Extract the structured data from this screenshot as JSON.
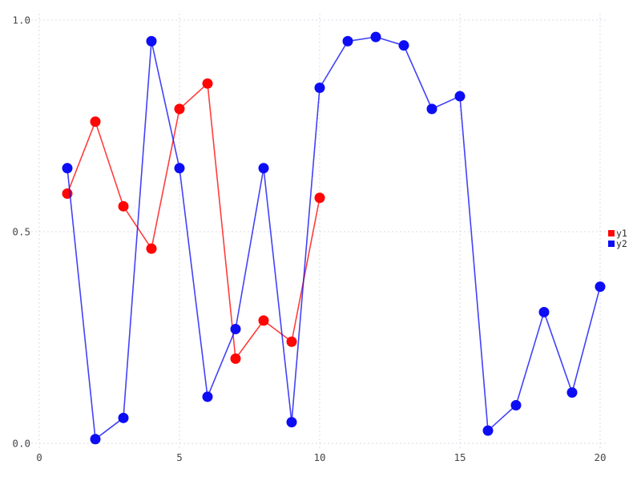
{
  "chart_data": {
    "type": "line",
    "title": "",
    "xlabel": "",
    "ylabel": "",
    "xlim": [
      0,
      20
    ],
    "ylim": [
      0.0,
      1.0
    ],
    "grid": true,
    "grid_style": "dotted",
    "legend_position": "right-center",
    "xticks": [
      0,
      5,
      10,
      15,
      20
    ],
    "xtick_labels": [
      "0",
      "5",
      "10",
      "15",
      "20"
    ],
    "yticks": [
      0.0,
      0.5,
      1.0
    ],
    "ytick_labels": [
      "0.0",
      "0.5",
      "1.0"
    ],
    "series": [
      {
        "name": "y1",
        "color": "#ff0505",
        "x": [
          1,
          2,
          3,
          4,
          5,
          6,
          7,
          8,
          9,
          10
        ],
        "values": [
          0.59,
          0.76,
          0.56,
          0.46,
          0.79,
          0.85,
          0.2,
          0.29,
          0.24,
          0.58
        ]
      },
      {
        "name": "y2",
        "color": "#0d0df5",
        "x": [
          1,
          2,
          3,
          4,
          5,
          6,
          7,
          8,
          9,
          10,
          11,
          12,
          13,
          14,
          15,
          16,
          17,
          18,
          19,
          20
        ],
        "values": [
          0.65,
          0.01,
          0.06,
          0.95,
          0.65,
          0.11,
          0.27,
          0.65,
          0.05,
          0.84,
          0.95,
          0.96,
          0.94,
          0.79,
          0.82,
          0.03,
          0.09,
          0.31,
          0.12,
          0.37
        ]
      }
    ],
    "colors": {
      "background": "#ffffff",
      "gridline": "#dcdae6",
      "tick_text": "#47474d",
      "legend_text": "#2b2b2b"
    }
  }
}
